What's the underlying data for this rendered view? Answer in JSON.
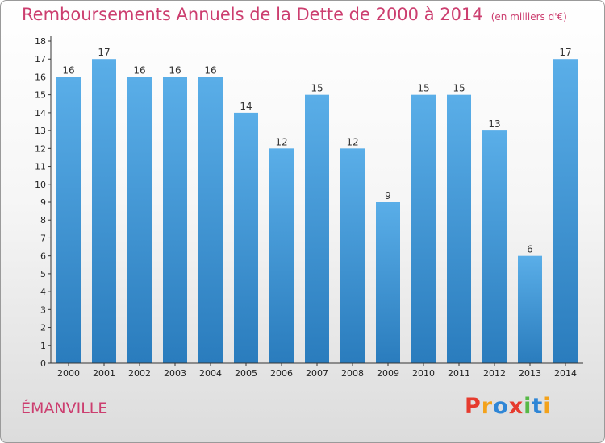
{
  "title": "Remboursements Annuels de la Dette de 2000 à 2014",
  "unit": "(en milliers d'€)",
  "commune": "ÉMANVILLE",
  "logo": "Proxiti",
  "colors": {
    "title": "#cc3e6f",
    "bar_light": "#5aaee8",
    "bar_dark": "#2a7cbd",
    "axis": "#333333",
    "logo": [
      "#e63b2e",
      "#f3a21b",
      "#2f86d6",
      "#e63b2e",
      "#57b947",
      "#2f86d6",
      "#f3a21b"
    ]
  },
  "chart_data": {
    "type": "bar",
    "categories": [
      "2000",
      "2001",
      "2002",
      "2003",
      "2004",
      "2005",
      "2006",
      "2007",
      "2008",
      "2009",
      "2010",
      "2011",
      "2012",
      "2013",
      "2014"
    ],
    "values": [
      16,
      17,
      16,
      16,
      16,
      14,
      12,
      15,
      12,
      9,
      15,
      15,
      13,
      6,
      17
    ],
    "ylim": [
      0,
      18
    ],
    "yticks": [
      0,
      1,
      2,
      3,
      4,
      5,
      6,
      7,
      8,
      9,
      10,
      11,
      12,
      13,
      14,
      15,
      16,
      17,
      18
    ],
    "grid": false,
    "title": "Remboursements Annuels de la Dette de 2000 à 2014",
    "xlabel": "",
    "ylabel": ""
  }
}
